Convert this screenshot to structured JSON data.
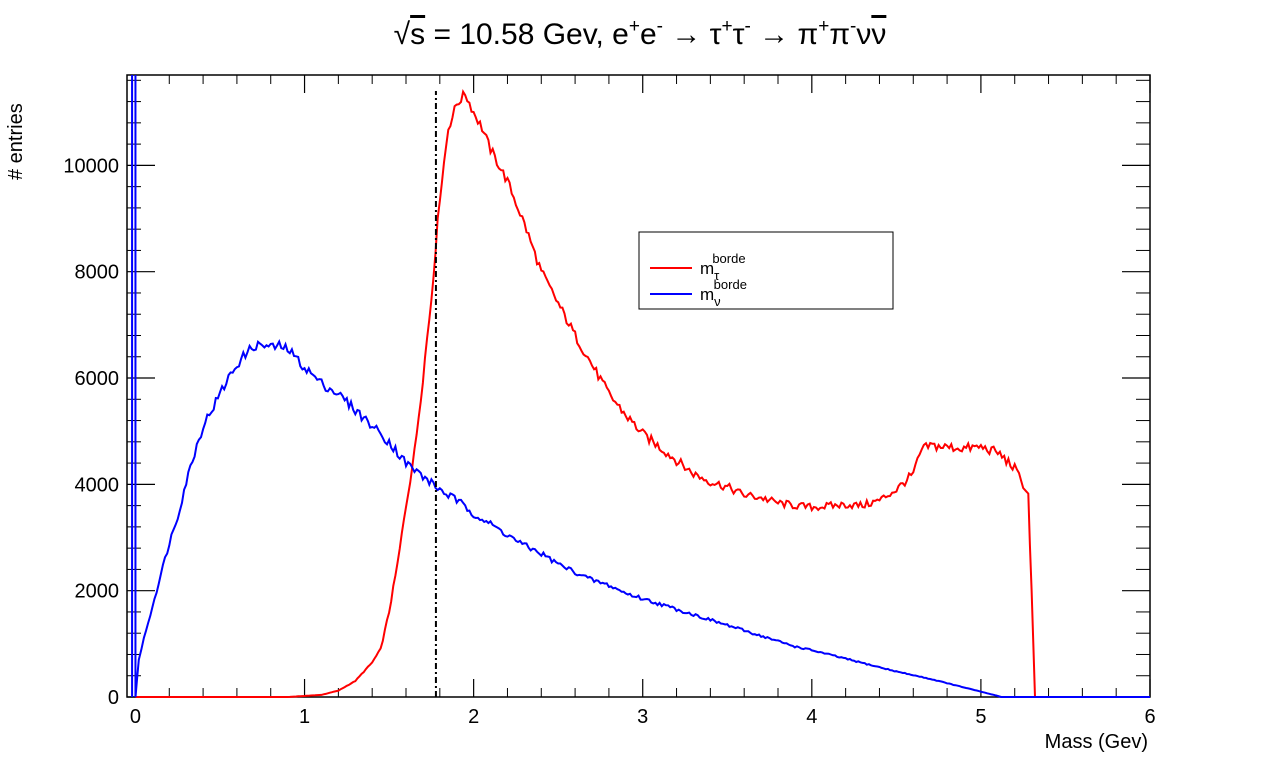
{
  "chart_data": {
    "type": "line",
    "title": "√s = 10.58 Gev, e⁺e⁻ → τ⁺τ⁻ → π⁺π⁻νν̄",
    "title_parts": {
      "sqrt_symbol": "√",
      "sqrt_arg": "s",
      "main": " = 10.58 Gev, e",
      "sup_plus": "+",
      "e2": "e",
      "sup_minus": "-",
      "arrow": " → ",
      "tau": "τ",
      "pi": "π",
      "nu": "ν"
    },
    "xlabel": "Mass (Gev)",
    "ylabel": "# entries",
    "xlim": [
      -0.05,
      6
    ],
    "ylim": [
      0,
      11700
    ],
    "x_ticks": [
      "0",
      "1",
      "2",
      "3",
      "4",
      "5",
      "6"
    ],
    "y_ticks": [
      "0",
      "2000",
      "4000",
      "6000",
      "8000",
      "10000"
    ],
    "vertical_marker_x": 1.777,
    "legend": {
      "placement": "upper-center-right",
      "entries": [
        {
          "base": "m",
          "sub": "τ",
          "sup": "borde",
          "color": "#ff0000"
        },
        {
          "base": "m",
          "sub": "ν",
          "sup": "borde",
          "color": "#0000ff"
        }
      ]
    },
    "series": [
      {
        "name": "m_τ^borde",
        "color": "#ff0000",
        "points": [
          [
            0.0,
            0
          ],
          [
            0.9,
            0
          ],
          [
            1.0,
            20
          ],
          [
            1.1,
            40
          ],
          [
            1.2,
            120
          ],
          [
            1.3,
            300
          ],
          [
            1.4,
            650
          ],
          [
            1.45,
            900
          ],
          [
            1.5,
            1600
          ],
          [
            1.55,
            2500
          ],
          [
            1.6,
            3600
          ],
          [
            1.65,
            4600
          ],
          [
            1.7,
            6000
          ],
          [
            1.75,
            7500
          ],
          [
            1.8,
            9400
          ],
          [
            1.85,
            10700
          ],
          [
            1.9,
            11150
          ],
          [
            1.95,
            11350
          ],
          [
            2.0,
            11000
          ],
          [
            2.05,
            10700
          ],
          [
            2.1,
            10300
          ],
          [
            2.2,
            9700
          ],
          [
            2.3,
            8900
          ],
          [
            2.4,
            8000
          ],
          [
            2.5,
            7400
          ],
          [
            2.6,
            6800
          ],
          [
            2.7,
            6250
          ],
          [
            2.8,
            5700
          ],
          [
            2.9,
            5300
          ],
          [
            3.0,
            4950
          ],
          [
            3.1,
            4700
          ],
          [
            3.2,
            4450
          ],
          [
            3.3,
            4200
          ],
          [
            3.4,
            4050
          ],
          [
            3.5,
            3950
          ],
          [
            3.6,
            3800
          ],
          [
            3.7,
            3750
          ],
          [
            3.8,
            3650
          ],
          [
            3.9,
            3600
          ],
          [
            4.0,
            3570
          ],
          [
            4.1,
            3590
          ],
          [
            4.2,
            3620
          ],
          [
            4.3,
            3600
          ],
          [
            4.4,
            3700
          ],
          [
            4.5,
            3900
          ],
          [
            4.6,
            4200
          ],
          [
            4.65,
            4650
          ],
          [
            4.7,
            4730
          ],
          [
            4.8,
            4700
          ],
          [
            4.9,
            4680
          ],
          [
            5.0,
            4700
          ],
          [
            5.1,
            4600
          ],
          [
            5.2,
            4300
          ],
          [
            5.25,
            4000
          ],
          [
            5.28,
            3800
          ],
          [
            5.3,
            2000
          ],
          [
            5.32,
            0
          ],
          [
            6.0,
            0
          ]
        ]
      },
      {
        "name": "m_ν^borde",
        "color": "#0000ff",
        "points": [
          [
            0.0,
            0
          ],
          [
            0.02,
            700
          ],
          [
            0.05,
            1100
          ],
          [
            0.1,
            1700
          ],
          [
            0.15,
            2300
          ],
          [
            0.2,
            2900
          ],
          [
            0.25,
            3400
          ],
          [
            0.3,
            4050
          ],
          [
            0.35,
            4600
          ],
          [
            0.4,
            5100
          ],
          [
            0.45,
            5400
          ],
          [
            0.5,
            5700
          ],
          [
            0.55,
            6000
          ],
          [
            0.6,
            6250
          ],
          [
            0.65,
            6450
          ],
          [
            0.7,
            6600
          ],
          [
            0.75,
            6620
          ],
          [
            0.8,
            6580
          ],
          [
            0.85,
            6600
          ],
          [
            0.9,
            6550
          ],
          [
            1.0,
            6200
          ],
          [
            1.1,
            5900
          ],
          [
            1.2,
            5700
          ],
          [
            1.3,
            5400
          ],
          [
            1.4,
            5100
          ],
          [
            1.5,
            4800
          ],
          [
            1.6,
            4400
          ],
          [
            1.7,
            4150
          ],
          [
            1.8,
            3900
          ],
          [
            1.9,
            3700
          ],
          [
            2.0,
            3450
          ],
          [
            2.1,
            3250
          ],
          [
            2.2,
            3050
          ],
          [
            2.3,
            2850
          ],
          [
            2.4,
            2700
          ],
          [
            2.5,
            2500
          ],
          [
            2.6,
            2350
          ],
          [
            2.7,
            2200
          ],
          [
            2.8,
            2100
          ],
          [
            2.9,
            1950
          ],
          [
            3.0,
            1850
          ],
          [
            3.1,
            1750
          ],
          [
            3.2,
            1650
          ],
          [
            3.3,
            1550
          ],
          [
            3.4,
            1450
          ],
          [
            3.5,
            1350
          ],
          [
            3.6,
            1250
          ],
          [
            3.7,
            1150
          ],
          [
            3.8,
            1050
          ],
          [
            3.9,
            950
          ],
          [
            4.0,
            880
          ],
          [
            4.1,
            800
          ],
          [
            4.2,
            720
          ],
          [
            4.3,
            640
          ],
          [
            4.4,
            560
          ],
          [
            4.5,
            480
          ],
          [
            4.6,
            410
          ],
          [
            4.7,
            340
          ],
          [
            4.8,
            260
          ],
          [
            4.9,
            180
          ],
          [
            5.0,
            100
          ],
          [
            5.1,
            20
          ],
          [
            5.12,
            0
          ],
          [
            6.0,
            0
          ]
        ]
      }
    ],
    "blue_spike": {
      "x": -0.02,
      "top": 11700
    }
  }
}
